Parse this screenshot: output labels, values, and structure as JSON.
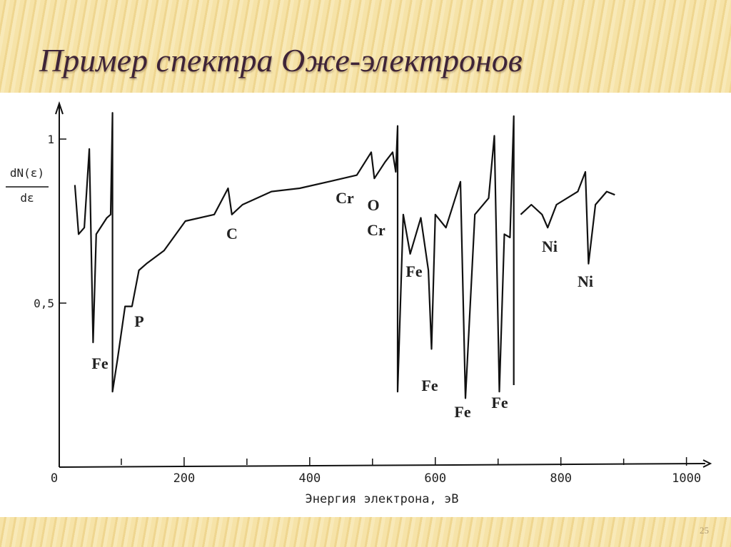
{
  "title": "Пример спектра Оже-электронов",
  "page_number": 25,
  "chart_data": {
    "type": "line",
    "xlabel": "Энергия электрона, эВ",
    "ylabel": [
      "dN(ε)",
      "dε"
    ],
    "x": [
      26,
      32,
      41,
      49,
      55,
      60,
      77,
      83,
      86,
      86,
      94,
      106,
      117,
      128,
      140,
      168,
      202,
      248,
      270,
      276,
      293,
      339,
      384,
      430,
      475,
      498,
      503,
      520,
      532,
      537,
      540,
      540,
      549,
      560,
      577,
      589,
      594,
      600,
      617,
      640,
      648,
      663,
      685,
      694,
      702,
      710,
      719,
      725,
      725,
      null,
      736,
      753,
      770,
      779,
      793,
      827,
      839,
      844,
      855,
      873,
      886
    ],
    "series": [
      {
        "color": "#111111",
        "values": [
          0.86,
          0.71,
          0.73,
          0.97,
          0.38,
          0.71,
          0.76,
          0.77,
          1.08,
          0.23,
          0.33,
          0.49,
          0.49,
          0.6,
          0.62,
          0.66,
          0.75,
          0.77,
          0.85,
          0.77,
          0.8,
          0.84,
          0.85,
          0.87,
          0.89,
          0.96,
          0.88,
          0.93,
          0.96,
          0.9,
          1.04,
          0.23,
          0.77,
          0.65,
          0.76,
          0.6,
          0.36,
          0.77,
          0.73,
          0.87,
          0.21,
          0.77,
          0.82,
          1.01,
          0.23,
          0.71,
          0.7,
          1.07,
          0.25,
          null,
          0.77,
          0.8,
          0.77,
          0.73,
          0.8,
          0.84,
          0.9,
          0.62,
          0.8,
          0.84,
          0.83
        ]
      }
    ],
    "annotations": [
      "Fe",
      "P",
      "C",
      "Cr",
      "O",
      "Cr",
      "Fe",
      "Fe",
      "Fe",
      "Fe",
      "Ni",
      "Ni"
    ],
    "xlim": [
      0,
      1030
    ],
    "xticks": [
      0,
      200,
      400,
      600,
      800,
      1000
    ],
    "ylim": [
      0,
      1.1
    ],
    "yticks": [
      {
        "value": 0.5,
        "label": "0,5"
      },
      1
    ]
  }
}
